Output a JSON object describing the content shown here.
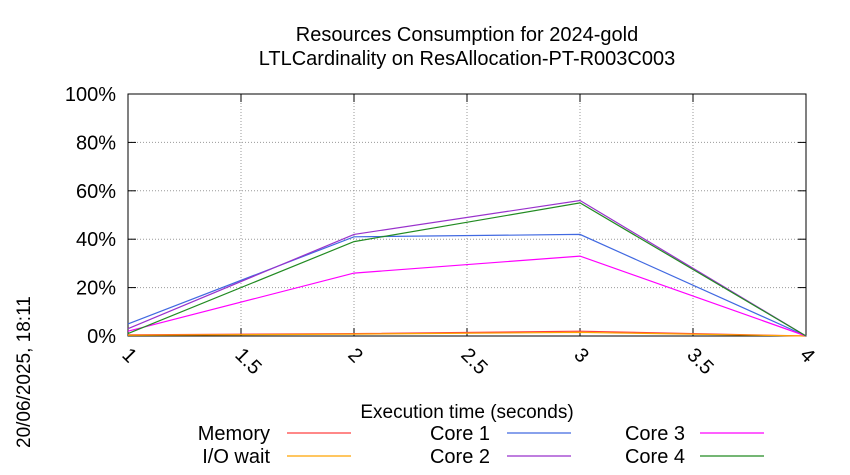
{
  "chart_data": {
    "type": "line",
    "title": "Resources Consumption for 2024-gold",
    "subtitle": "LTLCardinality on ResAllocation-PT-R003C003",
    "xlabel": "Execution time (seconds)",
    "ylabel": "",
    "xlim": [
      1,
      4
    ],
    "ylim": [
      0,
      100
    ],
    "x_ticks": [
      "1",
      "1.5",
      "2",
      "2.5",
      "3",
      "3.5",
      "4"
    ],
    "y_ticks": [
      "0%",
      "20%",
      "40%",
      "60%",
      "80%",
      "100%"
    ],
    "grid": true,
    "legend_position": "bottom",
    "x": [
      1,
      2,
      3,
      4
    ],
    "series": [
      {
        "name": "Memory",
        "color": "#ff4040",
        "values": [
          0.5,
          1.0,
          2.0,
          0
        ]
      },
      {
        "name": "I/O wait",
        "color": "#ffa500",
        "values": [
          0.3,
          0.8,
          1.5,
          0
        ]
      },
      {
        "name": "Core 1",
        "color": "#4169e1",
        "values": [
          5,
          41,
          42,
          0
        ]
      },
      {
        "name": "Core 2",
        "color": "#9932cc",
        "values": [
          3,
          42,
          56,
          0
        ]
      },
      {
        "name": "Core 3",
        "color": "#ff00ff",
        "values": [
          2,
          26,
          33,
          0
        ]
      },
      {
        "name": "Core 4",
        "color": "#228b22",
        "values": [
          1,
          39,
          55,
          0
        ]
      }
    ]
  },
  "timestamp": "20/06/2025, 18:11"
}
